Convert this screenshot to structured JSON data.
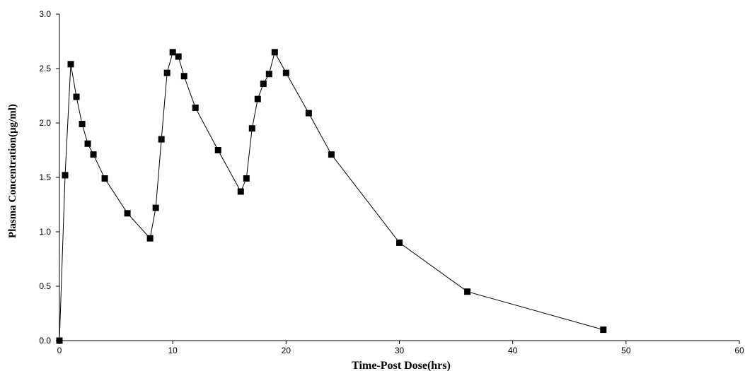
{
  "chart_data": {
    "type": "line",
    "xlabel": "Time-Post Dose(hrs)",
    "ylabel": "Plasma Concentration(µg/ml)",
    "xlim": [
      0,
      60
    ],
    "ylim": [
      0,
      3.0
    ],
    "x_ticks": [
      0,
      10,
      20,
      30,
      40,
      50,
      60
    ],
    "y_ticks": [
      0.0,
      0.5,
      1.0,
      1.5,
      2.0,
      2.5,
      3.0
    ],
    "x_tick_labels": [
      "0",
      "10",
      "20",
      "30",
      "40",
      "50",
      "60"
    ],
    "y_tick_labels": [
      "0.0",
      "0.5",
      "1.0",
      "1.5",
      "2.0",
      "2.5",
      "3.0"
    ],
    "grid": false,
    "legend": "none",
    "series": [
      {
        "color": "#000000",
        "marker": "square",
        "points": [
          [
            0,
            0.0
          ],
          [
            0.5,
            1.52
          ],
          [
            1,
            2.54
          ],
          [
            1.5,
            2.24
          ],
          [
            2,
            1.99
          ],
          [
            2.5,
            1.81
          ],
          [
            3,
            1.71
          ],
          [
            4,
            1.49
          ],
          [
            6,
            1.17
          ],
          [
            8,
            0.94
          ],
          [
            8.5,
            1.22
          ],
          [
            9,
            1.85
          ],
          [
            9.5,
            2.46
          ],
          [
            10,
            2.65
          ],
          [
            10.5,
            2.61
          ],
          [
            11,
            2.43
          ],
          [
            12,
            2.14
          ],
          [
            14,
            1.75
          ],
          [
            16,
            1.37
          ],
          [
            16.5,
            1.49
          ],
          [
            17,
            1.95
          ],
          [
            17.5,
            2.22
          ],
          [
            18,
            2.36
          ],
          [
            18.5,
            2.45
          ],
          [
            19,
            2.65
          ],
          [
            20,
            2.46
          ],
          [
            22,
            2.09
          ],
          [
            24,
            1.71
          ],
          [
            30,
            0.9
          ],
          [
            36,
            0.45
          ],
          [
            48,
            0.1
          ]
        ]
      }
    ]
  }
}
